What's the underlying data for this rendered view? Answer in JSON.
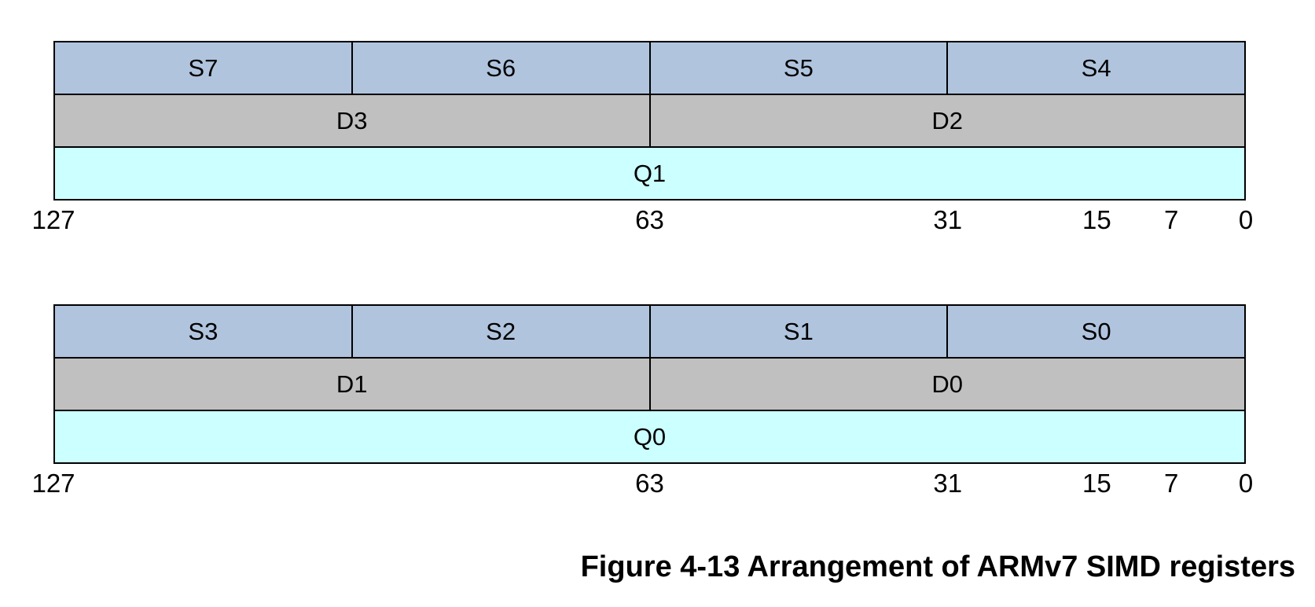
{
  "figure": {
    "caption": "Figure 4-13 Arrangement of ARMv7 SIMD registers"
  },
  "colors": {
    "s_cell_fill": "#b0c4de",
    "d_cell_fill": "#c0c0c0",
    "q_cell_fill": "#ccffff",
    "border": "#000000",
    "text": "#000000",
    "background": "#ffffff"
  },
  "banks": [
    {
      "name": "Q1 bank",
      "s_registers": [
        "S7",
        "S6",
        "S5",
        "S4"
      ],
      "d_registers": [
        "D3",
        "D2"
      ],
      "q_register": "Q1",
      "bit_labels": [
        {
          "label": "127",
          "position_pct": 0
        },
        {
          "label": "63",
          "position_pct": 50
        },
        {
          "label": "31",
          "position_pct": 75
        },
        {
          "label": "15",
          "position_pct": 87.5
        },
        {
          "label": "7",
          "position_pct": 93.75
        },
        {
          "label": "0",
          "position_pct": 100
        }
      ]
    },
    {
      "name": "Q0 bank",
      "s_registers": [
        "S3",
        "S2",
        "S1",
        "S0"
      ],
      "d_registers": [
        "D1",
        "D0"
      ],
      "q_register": "Q0",
      "bit_labels": [
        {
          "label": "127",
          "position_pct": 0
        },
        {
          "label": "63",
          "position_pct": 50
        },
        {
          "label": "31",
          "position_pct": 75
        },
        {
          "label": "15",
          "position_pct": 87.5
        },
        {
          "label": "7",
          "position_pct": 93.75
        },
        {
          "label": "0",
          "position_pct": 100
        }
      ]
    }
  ]
}
